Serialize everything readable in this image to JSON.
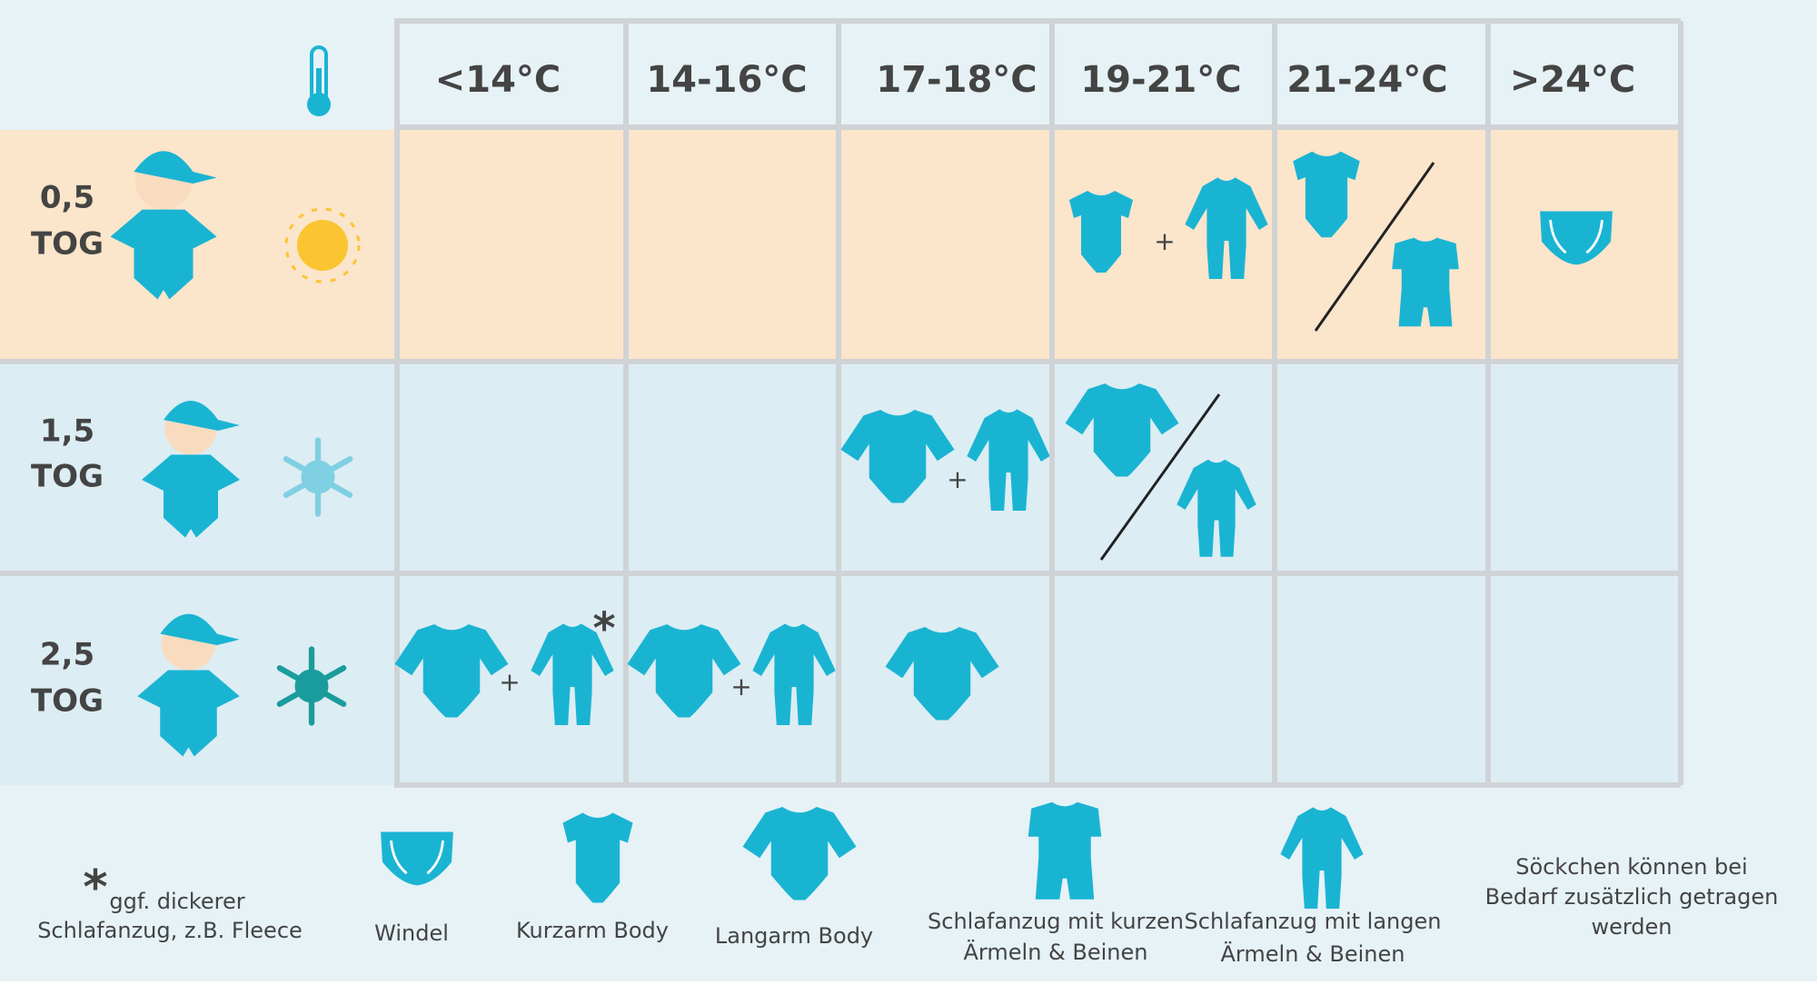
{
  "table": {
    "columns": [
      "<14°C",
      "14-16°C",
      "17-18°C",
      "19-21°C",
      "21-24°C",
      ">24°C"
    ],
    "rows": [
      {
        "tog_value": "0,5",
        "tog_unit": "TOG"
      },
      {
        "tog_value": "1,5",
        "tog_unit": "TOG"
      },
      {
        "tog_value": "2,5",
        "tog_unit": "TOG"
      }
    ],
    "plus": "+",
    "asterisk": "*"
  },
  "legend": {
    "footnote": [
      "ggf. dickerer",
      "Schlafanzug, z.B. Fleece"
    ],
    "items": [
      {
        "label": [
          "Windel"
        ]
      },
      {
        "label": [
          "Kurzarm Body"
        ]
      },
      {
        "label": [
          "Langarm Body"
        ]
      },
      {
        "label": [
          "Schlafanzug mit kurzen",
          "Ärmeln & Beinen"
        ]
      },
      {
        "label": [
          "Schlafanzug mit langen",
          "Ärmeln & Beinen"
        ]
      }
    ],
    "note": [
      "Söckchen können bei",
      "Bedarf zusätzlich getragen",
      "werden"
    ]
  }
}
